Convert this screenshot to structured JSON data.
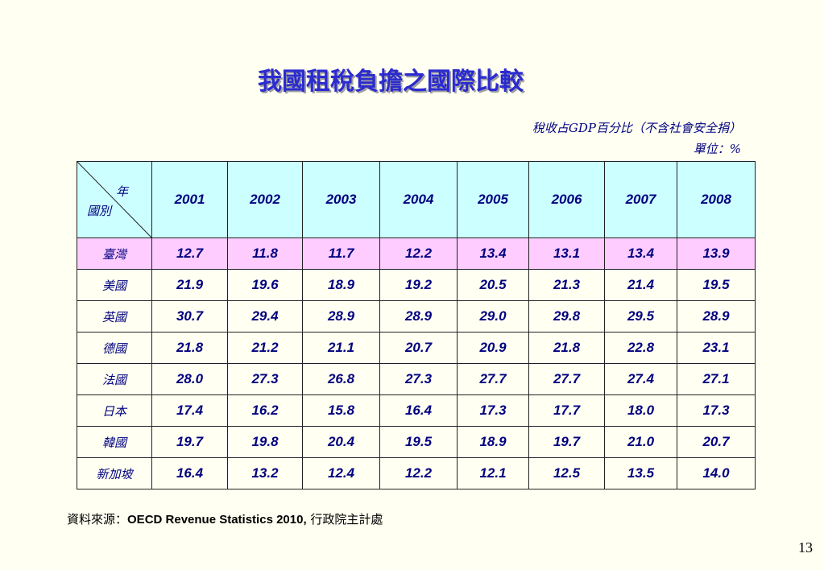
{
  "title": "我國租稅負擔之國際比較",
  "notes": [
    "稅收占GDP百分比（不含社會安全捐）",
    "單位：%"
  ],
  "table": {
    "corner": {
      "top": "年",
      "bottom": "國別"
    },
    "years": [
      "2001",
      "2002",
      "2003",
      "2004",
      "2005",
      "2006",
      "2007",
      "2008"
    ],
    "rows": [
      {
        "country": "臺灣",
        "values": [
          "12.7",
          "11.8",
          "11.7",
          "12.2",
          "13.4",
          "13.1",
          "13.4",
          "13.9"
        ]
      },
      {
        "country": "美國",
        "values": [
          "21.9",
          "19.6",
          "18.9",
          "19.2",
          "20.5",
          "21.3",
          "21.4",
          "19.5"
        ]
      },
      {
        "country": "英國",
        "values": [
          "30.7",
          "29.4",
          "28.9",
          "28.9",
          "29.0",
          "29.8",
          "29.5",
          "28.9"
        ]
      },
      {
        "country": "德國",
        "values": [
          "21.8",
          "21.2",
          "21.1",
          "20.7",
          "20.9",
          "21.8",
          "22.8",
          "23.1"
        ]
      },
      {
        "country": "法國",
        "values": [
          "28.0",
          "27.3",
          "26.8",
          "27.3",
          "27.7",
          "27.7",
          "27.4",
          "27.1"
        ]
      },
      {
        "country": "日本",
        "values": [
          "17.4",
          "16.2",
          "15.8",
          "16.4",
          "17.3",
          "17.7",
          "18.0",
          "17.3"
        ]
      },
      {
        "country": "韓國",
        "values": [
          "19.7",
          "19.8",
          "20.4",
          "19.5",
          "18.9",
          "19.7",
          "21.0",
          "20.7"
        ]
      },
      {
        "country": "新加坡",
        "values": [
          "16.4",
          "13.2",
          "12.4",
          "12.2",
          "12.1",
          "12.5",
          "13.5",
          "14.0"
        ]
      }
    ]
  },
  "source": {
    "label": "資料來源：",
    "main": "OECD Revenue Statistics 2010,",
    "rest": " 行政院主計處"
  },
  "page_number": "13"
}
